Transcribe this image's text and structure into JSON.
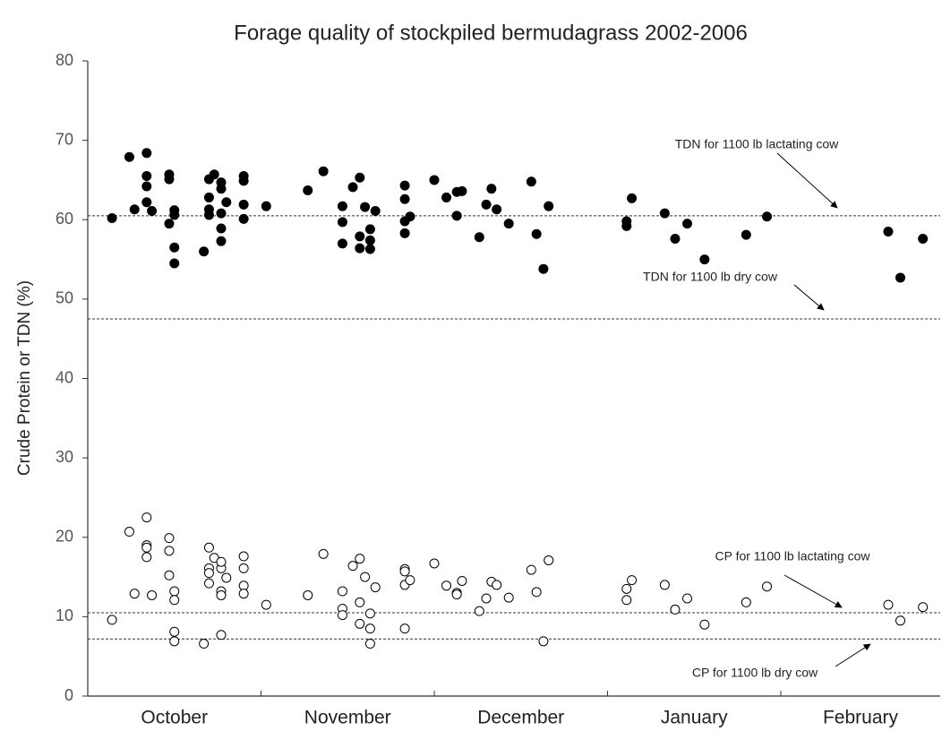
{
  "chart_data": {
    "type": "scatter",
    "title": "Forage quality of stockpiled bermudagrass 2002-2006",
    "y_label": "Crude Protein or TDN  (%)",
    "categories": [
      "October",
      "November",
      "December",
      "January",
      "February"
    ],
    "xlim": [
      0,
      4.92
    ],
    "xticks": [
      1,
      2,
      3,
      4
    ],
    "ylim": [
      0,
      80
    ],
    "yticks": [
      0,
      10,
      20,
      30,
      40,
      50,
      60,
      70,
      80
    ],
    "series": [
      {
        "color": "#000000",
        "fill": "#000000",
        "x": [
          0.14,
          0.24,
          0.27,
          0.34,
          0.34,
          0.34,
          0.34,
          0.37,
          0.47,
          0.47,
          0.47,
          0.5,
          0.5,
          0.5,
          0.5,
          0.67,
          0.7,
          0.7,
          0.7,
          0.7,
          0.73,
          0.77,
          0.77,
          0.77,
          0.77,
          0.77,
          0.8,
          0.9,
          0.9,
          0.9,
          0.9,
          1.03,
          1.27,
          1.36,
          1.47,
          1.47,
          1.47,
          1.53,
          1.57,
          1.57,
          1.57,
          1.6,
          1.63,
          1.63,
          1.63,
          1.66,
          1.83,
          1.83,
          1.83,
          1.83,
          1.86,
          2,
          2.07,
          2.13,
          2.13,
          2.16,
          2.26,
          2.3,
          2.33,
          2.36,
          2.43,
          2.56,
          2.59,
          2.63,
          2.66,
          3.11,
          3.11,
          3.14,
          3.33,
          3.39,
          3.46,
          3.56,
          3.8,
          3.92,
          4.62,
          4.69,
          4.82
        ],
        "values": [
          60.2,
          67.9,
          61.3,
          68.4,
          65.5,
          64.2,
          62.2,
          61.1,
          65.7,
          65.1,
          59.5,
          61.2,
          60.6,
          56.5,
          54.5,
          56.0,
          65.1,
          62.8,
          61.3,
          60.6,
          65.7,
          64.7,
          63.9,
          60.8,
          58.9,
          57.3,
          62.2,
          65.5,
          64.9,
          61.9,
          60.1,
          61.7,
          63.7,
          66.1,
          61.7,
          59.7,
          57.0,
          64.1,
          65.3,
          57.9,
          56.4,
          61.6,
          58.8,
          57.4,
          56.3,
          61.1,
          64.3,
          62.6,
          59.8,
          58.3,
          60.4,
          65.0,
          62.8,
          63.5,
          60.5,
          63.6,
          57.8,
          61.9,
          63.9,
          61.3,
          59.5,
          64.8,
          58.2,
          53.8,
          61.7,
          59.8,
          59.2,
          62.7,
          60.8,
          57.6,
          59.5,
          55.0,
          58.1,
          60.4,
          58.5,
          52.7,
          57.6
        ]
      },
      {
        "color": "#000000",
        "fill": "none",
        "x": [
          0.14,
          0.24,
          0.27,
          0.34,
          0.34,
          0.34,
          0.34,
          0.37,
          0.47,
          0.47,
          0.47,
          0.5,
          0.5,
          0.5,
          0.5,
          0.67,
          0.7,
          0.7,
          0.7,
          0.7,
          0.73,
          0.77,
          0.77,
          0.77,
          0.77,
          0.77,
          0.8,
          0.9,
          0.9,
          0.9,
          0.9,
          1.03,
          1.27,
          1.36,
          1.47,
          1.47,
          1.47,
          1.53,
          1.57,
          1.57,
          1.57,
          1.6,
          1.63,
          1.63,
          1.63,
          1.66,
          1.83,
          1.83,
          1.83,
          1.83,
          1.86,
          2,
          2.07,
          2.13,
          2.13,
          2.16,
          2.26,
          2.3,
          2.33,
          2.36,
          2.43,
          2.56,
          2.59,
          2.63,
          2.66,
          3.11,
          3.11,
          3.14,
          3.33,
          3.39,
          3.46,
          3.56,
          3.8,
          3.92,
          4.62,
          4.69,
          4.82
        ],
        "values": [
          9.6,
          20.7,
          12.9,
          22.5,
          19.0,
          18.7,
          17.5,
          12.7,
          19.9,
          18.3,
          15.2,
          13.2,
          12.1,
          8.1,
          6.9,
          6.6,
          18.7,
          16.1,
          15.5,
          14.2,
          17.4,
          16.1,
          16.9,
          13.2,
          12.7,
          7.7,
          14.9,
          17.6,
          16.1,
          13.9,
          12.9,
          11.5,
          12.7,
          17.9,
          13.2,
          11.0,
          10.2,
          16.4,
          17.3,
          11.8,
          9.1,
          15.0,
          10.4,
          8.5,
          6.6,
          13.7,
          16.0,
          15.7,
          14.0,
          8.5,
          14.6,
          16.7,
          13.9,
          13.0,
          12.8,
          14.5,
          10.7,
          12.3,
          14.4,
          14.0,
          12.4,
          15.9,
          13.1,
          6.9,
          17.1,
          13.5,
          12.1,
          14.6,
          14.0,
          10.9,
          12.3,
          9.0,
          11.8,
          13.8,
          11.5,
          9.5,
          11.2
        ]
      }
    ],
    "reference_lines": [
      {
        "label": "TDN for 1100 lb lactating cow",
        "value": 60.5
      },
      {
        "label": "TDN for 1100 lb dry cow",
        "value": 47.5
      },
      {
        "label": "CP for 1100 lb lactating cow",
        "value": 10.5
      },
      {
        "label": "CP for 1100 lb dry cow",
        "value": 7.2
      }
    ]
  }
}
